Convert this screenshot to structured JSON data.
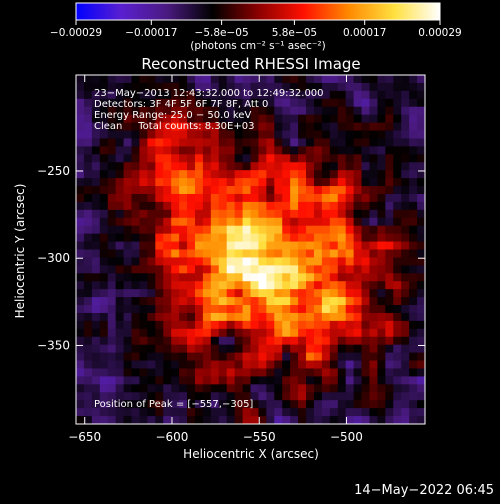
{
  "chart_data": {
    "type": "heatmap",
    "title": "Reconstructed RHESSI Image",
    "xlabel": "Heliocentric X (arcsec)",
    "ylabel": "Heliocentric Y (arcsec)",
    "xlim": [
      -655,
      -455
    ],
    "ylim": [
      -395,
      -195
    ],
    "x_ticks": [
      -650,
      -600,
      -550,
      -500
    ],
    "x_tick_labels": [
      "−650",
      "−600",
      "−550",
      "−500"
    ],
    "y_ticks": [
      -250,
      -300,
      -350
    ],
    "y_tick_labels": [
      "−250",
      "−300",
      "−350"
    ],
    "colorbar": {
      "range": [
        -0.00029,
        0.00029
      ],
      "ticks": [
        -0.00029,
        -0.00017,
        -5.8e-05,
        5.8e-05,
        0.00017,
        0.00029
      ],
      "tick_labels": [
        "−0.00029",
        "−0.00017",
        "−5.8e−05",
        "5.8e−05",
        "0.00017",
        "0.00029"
      ],
      "unit_label": "(photons cm⁻² s⁻¹ asec⁻²)",
      "colormap": [
        "#0000ff",
        "#5a1fd0",
        "#4a1a80",
        "#000000",
        "#8a0000",
        "#ff1000",
        "#ff8a00",
        "#ffe040",
        "#ffffff"
      ]
    },
    "annotations": [
      "23−May−2013 12:43:32.000 to 12:49:32.000",
      "Detectors: 3F 4F 5F 6F 7F 8F, Att 0",
      "Energy Range: 25.0 − 50.0 keV",
      "Clean     Total counts: 8.30E+03"
    ],
    "peak_label": "Position of Peak = [−557,−305]",
    "peak": [
      -557,
      -305
    ],
    "image_description": "Reconstructed X-ray intensity map; bright emission concentrated in lower-left quadrant around (-580,-310), weak noisy purple/blue background elsewhere",
    "grid": false
  },
  "footer": {
    "timestamp": "14−May−2022 06:45"
  }
}
